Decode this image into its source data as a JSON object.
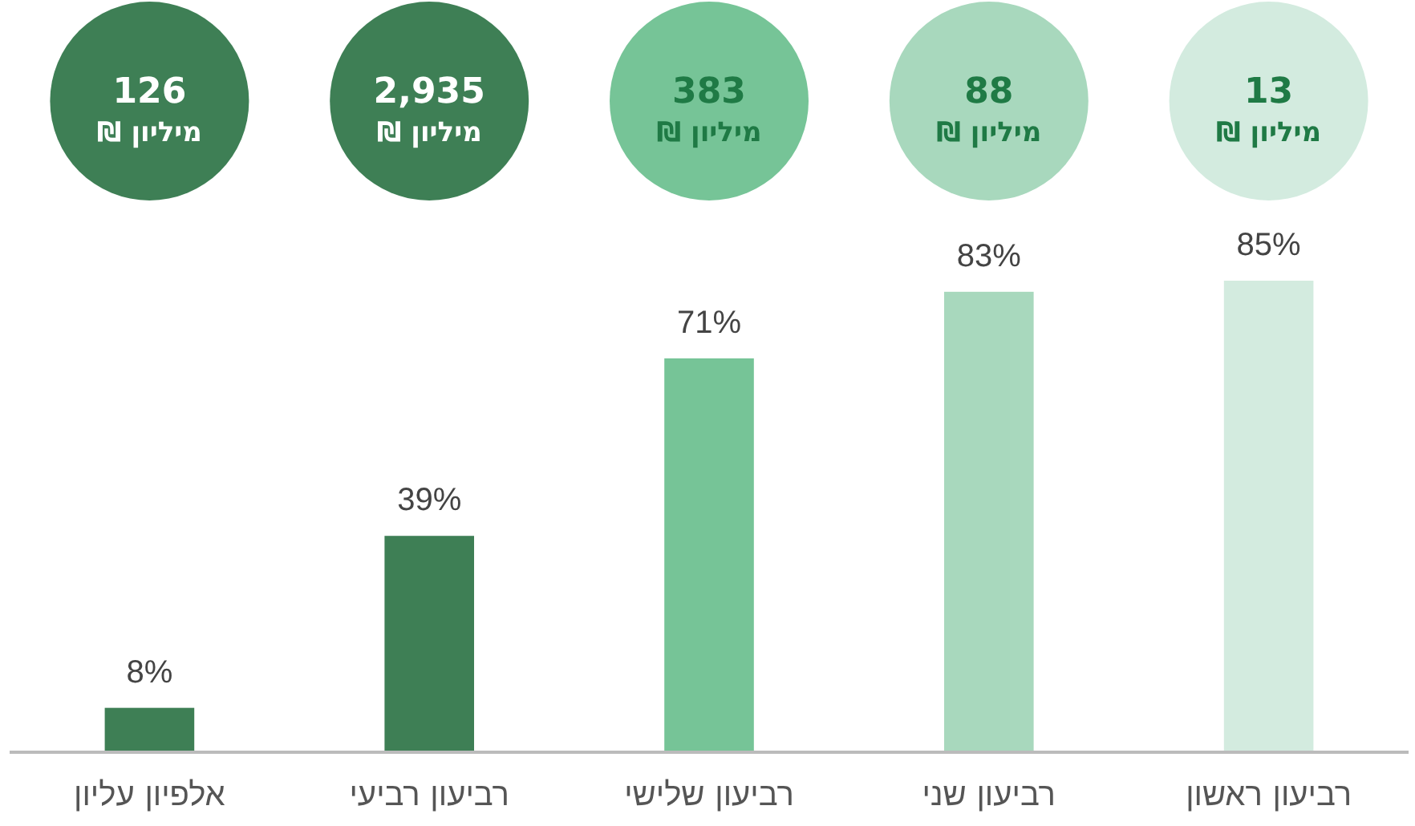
{
  "chart_data": {
    "type": "bar",
    "categories": [
      "אלפיון עליון",
      "רביעון רביעי",
      "רביעון שלישי",
      "רביעון שני",
      "רביעון ראשון"
    ],
    "values": [
      8,
      39,
      71,
      83,
      85
    ],
    "value_labels": [
      "8%",
      "39%",
      "71%",
      "83%",
      "85%"
    ],
    "colors": [
      "#3e7f55",
      "#3e7f55",
      "#76c497",
      "#a8d8bd",
      "#d3ebdf"
    ],
    "annotations": [
      "126\nמיליון ₪",
      "2,935\nמיליון ₪",
      "383\nמיליון ₪",
      "88\nמיליון ₪",
      "13\nמיליון ₪"
    ]
  }
}
